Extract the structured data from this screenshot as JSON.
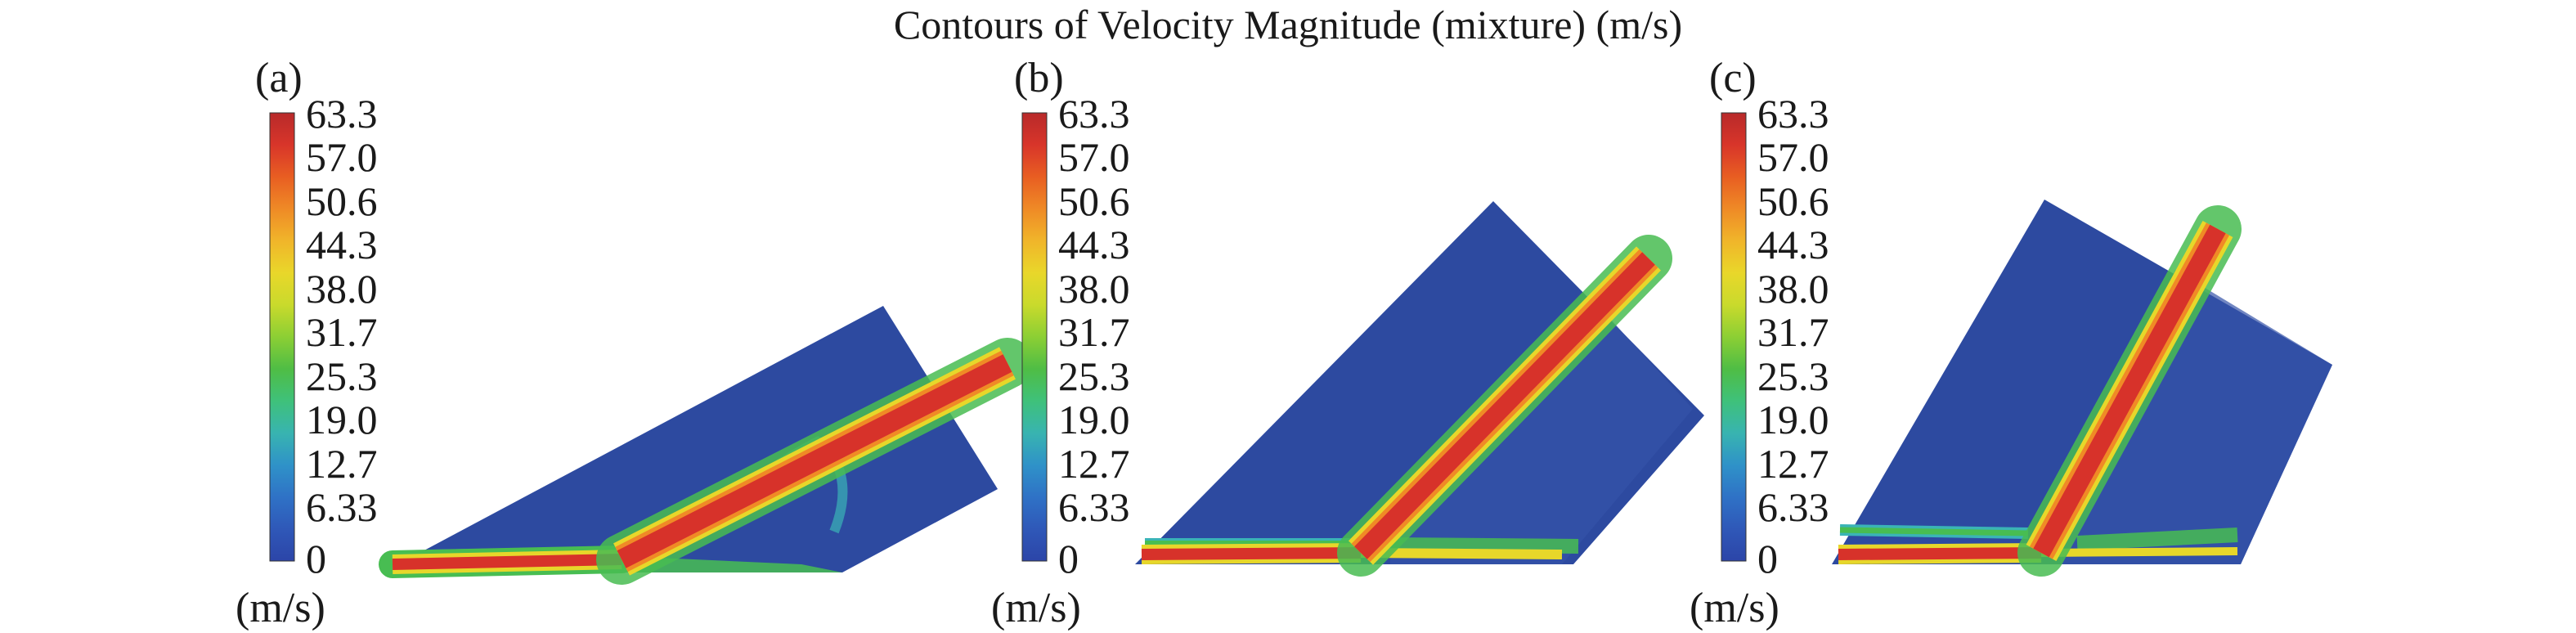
{
  "title": "Contours of Velocity Magnitude (mixture) (m/s)",
  "colorbar": {
    "ticks": [
      "63.3",
      "57.0",
      "50.6",
      "44.3",
      "38.0",
      "31.7",
      "25.3",
      "19.0",
      "12.7",
      "6.33",
      "0"
    ],
    "unit": "(m/s)",
    "colors": [
      "#2c45a8",
      "#2f58b8",
      "#2f72c6",
      "#2f92c8",
      "#38b4b0",
      "#3fc17a",
      "#4fbd45",
      "#8ccf34",
      "#c9da2c",
      "#e9d72a",
      "#f0b52a",
      "#ef8a26",
      "#e85e22",
      "#d8352a",
      "#b82a2a"
    ]
  },
  "colors": {
    "background_flow": "#2d4aa0",
    "jet_core": "#d7322a",
    "jet_halo_orange": "#f08a26",
    "jet_halo_yellow": "#e7d72a",
    "jet_halo_green": "#48bd52",
    "jet_halo_cyan": "#3ab4b6"
  },
  "panels": [
    {
      "label": "(a)"
    },
    {
      "label": "(b)"
    },
    {
      "label": "(c)"
    }
  ]
}
